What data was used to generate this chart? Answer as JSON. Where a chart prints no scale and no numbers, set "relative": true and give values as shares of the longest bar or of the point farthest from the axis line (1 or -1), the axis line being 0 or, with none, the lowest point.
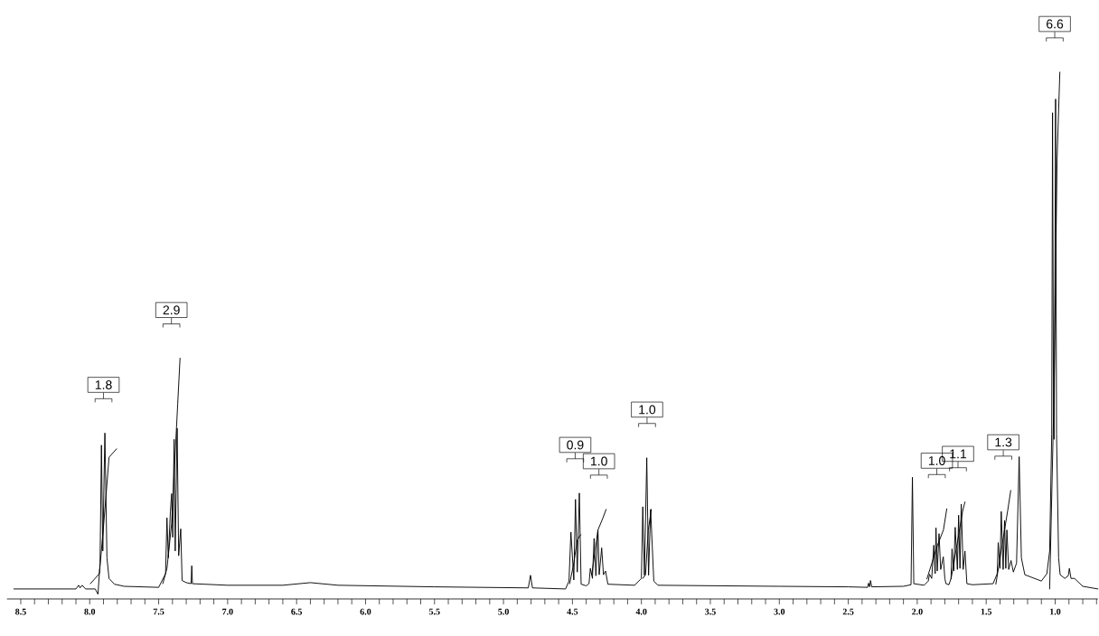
{
  "chart_data": {
    "type": "line",
    "relative": true,
    "xlim": [
      8.6,
      0.69
    ],
    "xticks": [
      8.5,
      {
        "value": 8.4,
        "label": null
      },
      {
        "value": 8.3,
        "label": null
      },
      {
        "value": 8.2,
        "label": null
      },
      {
        "value": 8.1,
        "label": null
      },
      {
        "value": 8.0,
        "label": "8.0"
      },
      {
        "value": 7.9,
        "label": null
      },
      {
        "value": 7.8,
        "label": null
      },
      {
        "value": 7.7,
        "label": null
      },
      {
        "value": 7.6,
        "label": null
      },
      7.5,
      {
        "value": 7.4,
        "label": null
      },
      {
        "value": 7.3,
        "label": null
      },
      {
        "value": 7.2,
        "label": null
      },
      {
        "value": 7.1,
        "label": null
      },
      {
        "value": 7.0,
        "label": "7.0"
      },
      {
        "value": 6.9,
        "label": null
      },
      {
        "value": 6.8,
        "label": null
      },
      {
        "value": 6.7,
        "label": null
      },
      {
        "value": 6.6,
        "label": null
      },
      6.5,
      {
        "value": 6.4,
        "label": null
      },
      {
        "value": 6.3,
        "label": null
      },
      {
        "value": 6.2,
        "label": null
      },
      {
        "value": 6.1,
        "label": null
      },
      {
        "value": 6.0,
        "label": "6.0"
      },
      {
        "value": 5.9,
        "label": null
      },
      {
        "value": 5.8,
        "label": null
      },
      {
        "value": 5.7,
        "label": null
      },
      {
        "value": 5.6,
        "label": null
      },
      5.5,
      {
        "value": 5.4,
        "label": null
      },
      {
        "value": 5.3,
        "label": null
      },
      {
        "value": 5.2,
        "label": null
      },
      {
        "value": 5.1,
        "label": null
      },
      {
        "value": 5.0,
        "label": "5.0"
      },
      {
        "value": 4.9,
        "label": null
      },
      {
        "value": 4.8,
        "label": null
      },
      {
        "value": 4.7,
        "label": null
      },
      {
        "value": 4.6,
        "label": null
      },
      4.5,
      {
        "value": 4.4,
        "label": null
      },
      {
        "value": 4.3,
        "label": null
      },
      {
        "value": 4.2,
        "label": null
      },
      {
        "value": 4.1,
        "label": null
      },
      {
        "value": 4.0,
        "label": "4.0"
      },
      {
        "value": 3.9,
        "label": null
      },
      {
        "value": 3.8,
        "label": null
      },
      {
        "value": 3.7,
        "label": null
      },
      {
        "value": 3.6,
        "label": null
      },
      3.5,
      {
        "value": 3.4,
        "label": null
      },
      {
        "value": 3.3,
        "label": null
      },
      {
        "value": 3.2,
        "label": null
      },
      {
        "value": 3.1,
        "label": null
      },
      {
        "value": 3.0,
        "label": "3.0"
      },
      {
        "value": 2.9,
        "label": null
      },
      {
        "value": 2.8,
        "label": null
      },
      {
        "value": 2.7,
        "label": null
      },
      {
        "value": 2.6,
        "label": null
      },
      2.5,
      {
        "value": 2.4,
        "label": null
      },
      {
        "value": 2.3,
        "label": null
      },
      {
        "value": 2.2,
        "label": null
      },
      {
        "value": 2.1,
        "label": null
      },
      {
        "value": 2.0,
        "label": "2.0"
      },
      {
        "value": 1.9,
        "label": null
      },
      {
        "value": 1.8,
        "label": null
      },
      {
        "value": 1.7,
        "label": null
      },
      {
        "value": 1.6,
        "label": null
      },
      1.5,
      {
        "value": 1.4,
        "label": null
      },
      {
        "value": 1.3,
        "label": null
      },
      {
        "value": 1.2,
        "label": null
      },
      {
        "value": 1.1,
        "label": null
      },
      {
        "value": 1.0,
        "label": "1.0"
      },
      {
        "value": 0.9,
        "label": null
      },
      {
        "value": 0.8,
        "label": null
      },
      {
        "value": 0.7,
        "label": null
      }
    ],
    "series": [
      {
        "color": "#000000",
        "x": [
          8.55,
          8.1,
          8.08,
          8.07,
          8.055,
          8.03,
          7.96,
          7.94,
          7.925,
          7.915,
          7.905,
          7.89,
          7.875,
          7.86,
          7.82,
          7.75,
          7.5,
          7.45,
          7.44,
          7.43,
          7.415,
          7.406,
          7.398,
          7.388,
          7.38,
          7.366,
          7.355,
          7.34,
          7.33,
          7.3,
          7.265,
          7.26,
          7.255,
          7.0,
          6.6,
          6.4,
          6.2,
          5.5,
          4.82,
          4.804,
          4.79,
          4.55,
          4.525,
          4.511,
          4.49,
          4.478,
          4.465,
          4.45,
          4.437,
          4.4,
          4.38,
          4.37,
          4.355,
          4.343,
          4.33,
          4.315,
          4.306,
          4.288,
          4.275,
          4.26,
          4.243,
          4.05,
          4.0,
          3.99,
          3.978,
          3.961,
          3.948,
          3.933,
          3.91,
          3.88,
          3.0,
          2.5,
          2.36,
          2.353,
          2.345,
          2.339,
          2.33,
          2.1,
          2.045,
          2.035,
          2.025,
          1.95,
          1.92,
          1.911,
          1.895,
          1.88,
          1.87,
          1.864,
          1.855,
          1.842,
          1.83,
          1.811,
          1.8,
          1.792,
          1.77,
          1.755,
          1.748,
          1.735,
          1.725,
          1.709,
          1.7,
          1.69,
          1.681,
          1.667,
          1.654,
          1.64,
          1.6,
          1.45,
          1.42,
          1.413,
          1.4,
          1.391,
          1.377,
          1.367,
          1.358,
          1.35,
          1.337,
          1.32,
          1.303,
          1.28,
          1.261,
          1.245,
          1.22,
          1.1,
          1.06,
          1.04,
          1.025,
          1.019,
          1.012,
          1.008,
          1.002,
          0.997,
          0.99,
          0.975,
          0.964,
          0.93,
          0.905,
          0.897,
          0.885,
          0.86,
          0.8,
          0.69
        ],
        "values": [
          0.019,
          0.019,
          0.026,
          0.021,
          0.026,
          0.019,
          0.019,
          0.009,
          0.068,
          0.292,
          0.091,
          0.315,
          0.078,
          0.039,
          0.028,
          0.024,
          0.022,
          0.048,
          0.154,
          0.078,
          0.166,
          0.2,
          0.117,
          0.303,
          0.091,
          0.324,
          0.082,
          0.133,
          0.035,
          0.031,
          0.029,
          0.063,
          0.029,
          0.026,
          0.026,
          0.031,
          0.026,
          0.023,
          0.021,
          0.045,
          0.021,
          0.019,
          0.034,
          0.127,
          0.036,
          0.189,
          0.051,
          0.201,
          0.028,
          0.025,
          0.029,
          0.058,
          0.039,
          0.115,
          0.044,
          0.131,
          0.046,
          0.097,
          0.046,
          0.053,
          0.028,
          0.026,
          0.039,
          0.175,
          0.045,
          0.268,
          0.045,
          0.17,
          0.034,
          0.026,
          0.024,
          0.023,
          0.022,
          0.03,
          0.023,
          0.035,
          0.023,
          0.024,
          0.027,
          0.231,
          0.029,
          0.026,
          0.034,
          0.047,
          0.039,
          0.102,
          0.048,
          0.135,
          0.053,
          0.124,
          0.056,
          0.08,
          0.039,
          0.029,
          0.027,
          0.039,
          0.095,
          0.053,
          0.136,
          0.056,
          0.159,
          0.058,
          0.18,
          0.056,
          0.091,
          0.029,
          0.027,
          0.029,
          0.048,
          0.107,
          0.058,
          0.166,
          0.056,
          0.149,
          0.058,
          0.131,
          0.056,
          0.073,
          0.051,
          0.068,
          0.27,
          0.078,
          0.046,
          0.034,
          0.048,
          0.091,
          0.313,
          0.923,
          0.362,
          0.303,
          0.608,
          0.949,
          0.313,
          0.078,
          0.046,
          0.039,
          0.044,
          0.058,
          0.039,
          0.039,
          0.024,
          0.019
        ]
      },
      {
        "color": "#000000",
        "x": [
          7.995,
          7.93,
          7.9,
          7.87,
          7.86,
          7.805
        ],
        "values": [
          0.029,
          0.048,
          0.137,
          0.235,
          0.269,
          0.285
        ]
      },
      {
        "color": "#000000",
        "x": [
          7.47,
          7.44,
          7.406,
          7.362,
          7.345
        ],
        "values": [
          0.029,
          0.058,
          0.143,
          0.37,
          0.457
        ]
      },
      {
        "color": "#000000",
        "x": [
          4.52,
          4.49,
          4.465,
          4.44
        ],
        "values": [
          0.029,
          0.068,
          0.112,
          0.122
        ]
      },
      {
        "color": "#000000",
        "x": [
          4.36,
          4.315,
          4.28,
          4.256
        ],
        "values": [
          0.046,
          0.131,
          0.153,
          0.17
        ]
      },
      {
        "color": "#000000",
        "x": [
          3.99,
          3.97,
          3.95,
          3.928
        ],
        "values": [
          0.039,
          0.046,
          0.131,
          0.17
        ]
      },
      {
        "color": "#000000",
        "x": [
          1.93,
          1.853,
          1.81,
          1.786
        ],
        "values": [
          0.038,
          0.102,
          0.131,
          0.171
        ]
      },
      {
        "color": "#000000",
        "x": [
          1.755,
          1.7,
          1.67,
          1.654
        ],
        "values": [
          0.038,
          0.121,
          0.168,
          0.184
        ]
      },
      {
        "color": "#000000",
        "x": [
          1.43,
          1.385,
          1.344,
          1.322
        ],
        "values": [
          0.028,
          0.102,
          0.168,
          0.206
        ]
      },
      {
        "color": "#000000",
        "x": [
          1.04,
          1.008,
          0.986,
          0.966
        ],
        "values": [
          0.019,
          0.392,
          0.837,
          1.0
        ]
      }
    ],
    "annotations": [
      "1.8",
      "2.9",
      "0.9",
      "1.0",
      "1.0",
      "1.0",
      "1.1",
      "1.3",
      "6.6"
    ]
  }
}
